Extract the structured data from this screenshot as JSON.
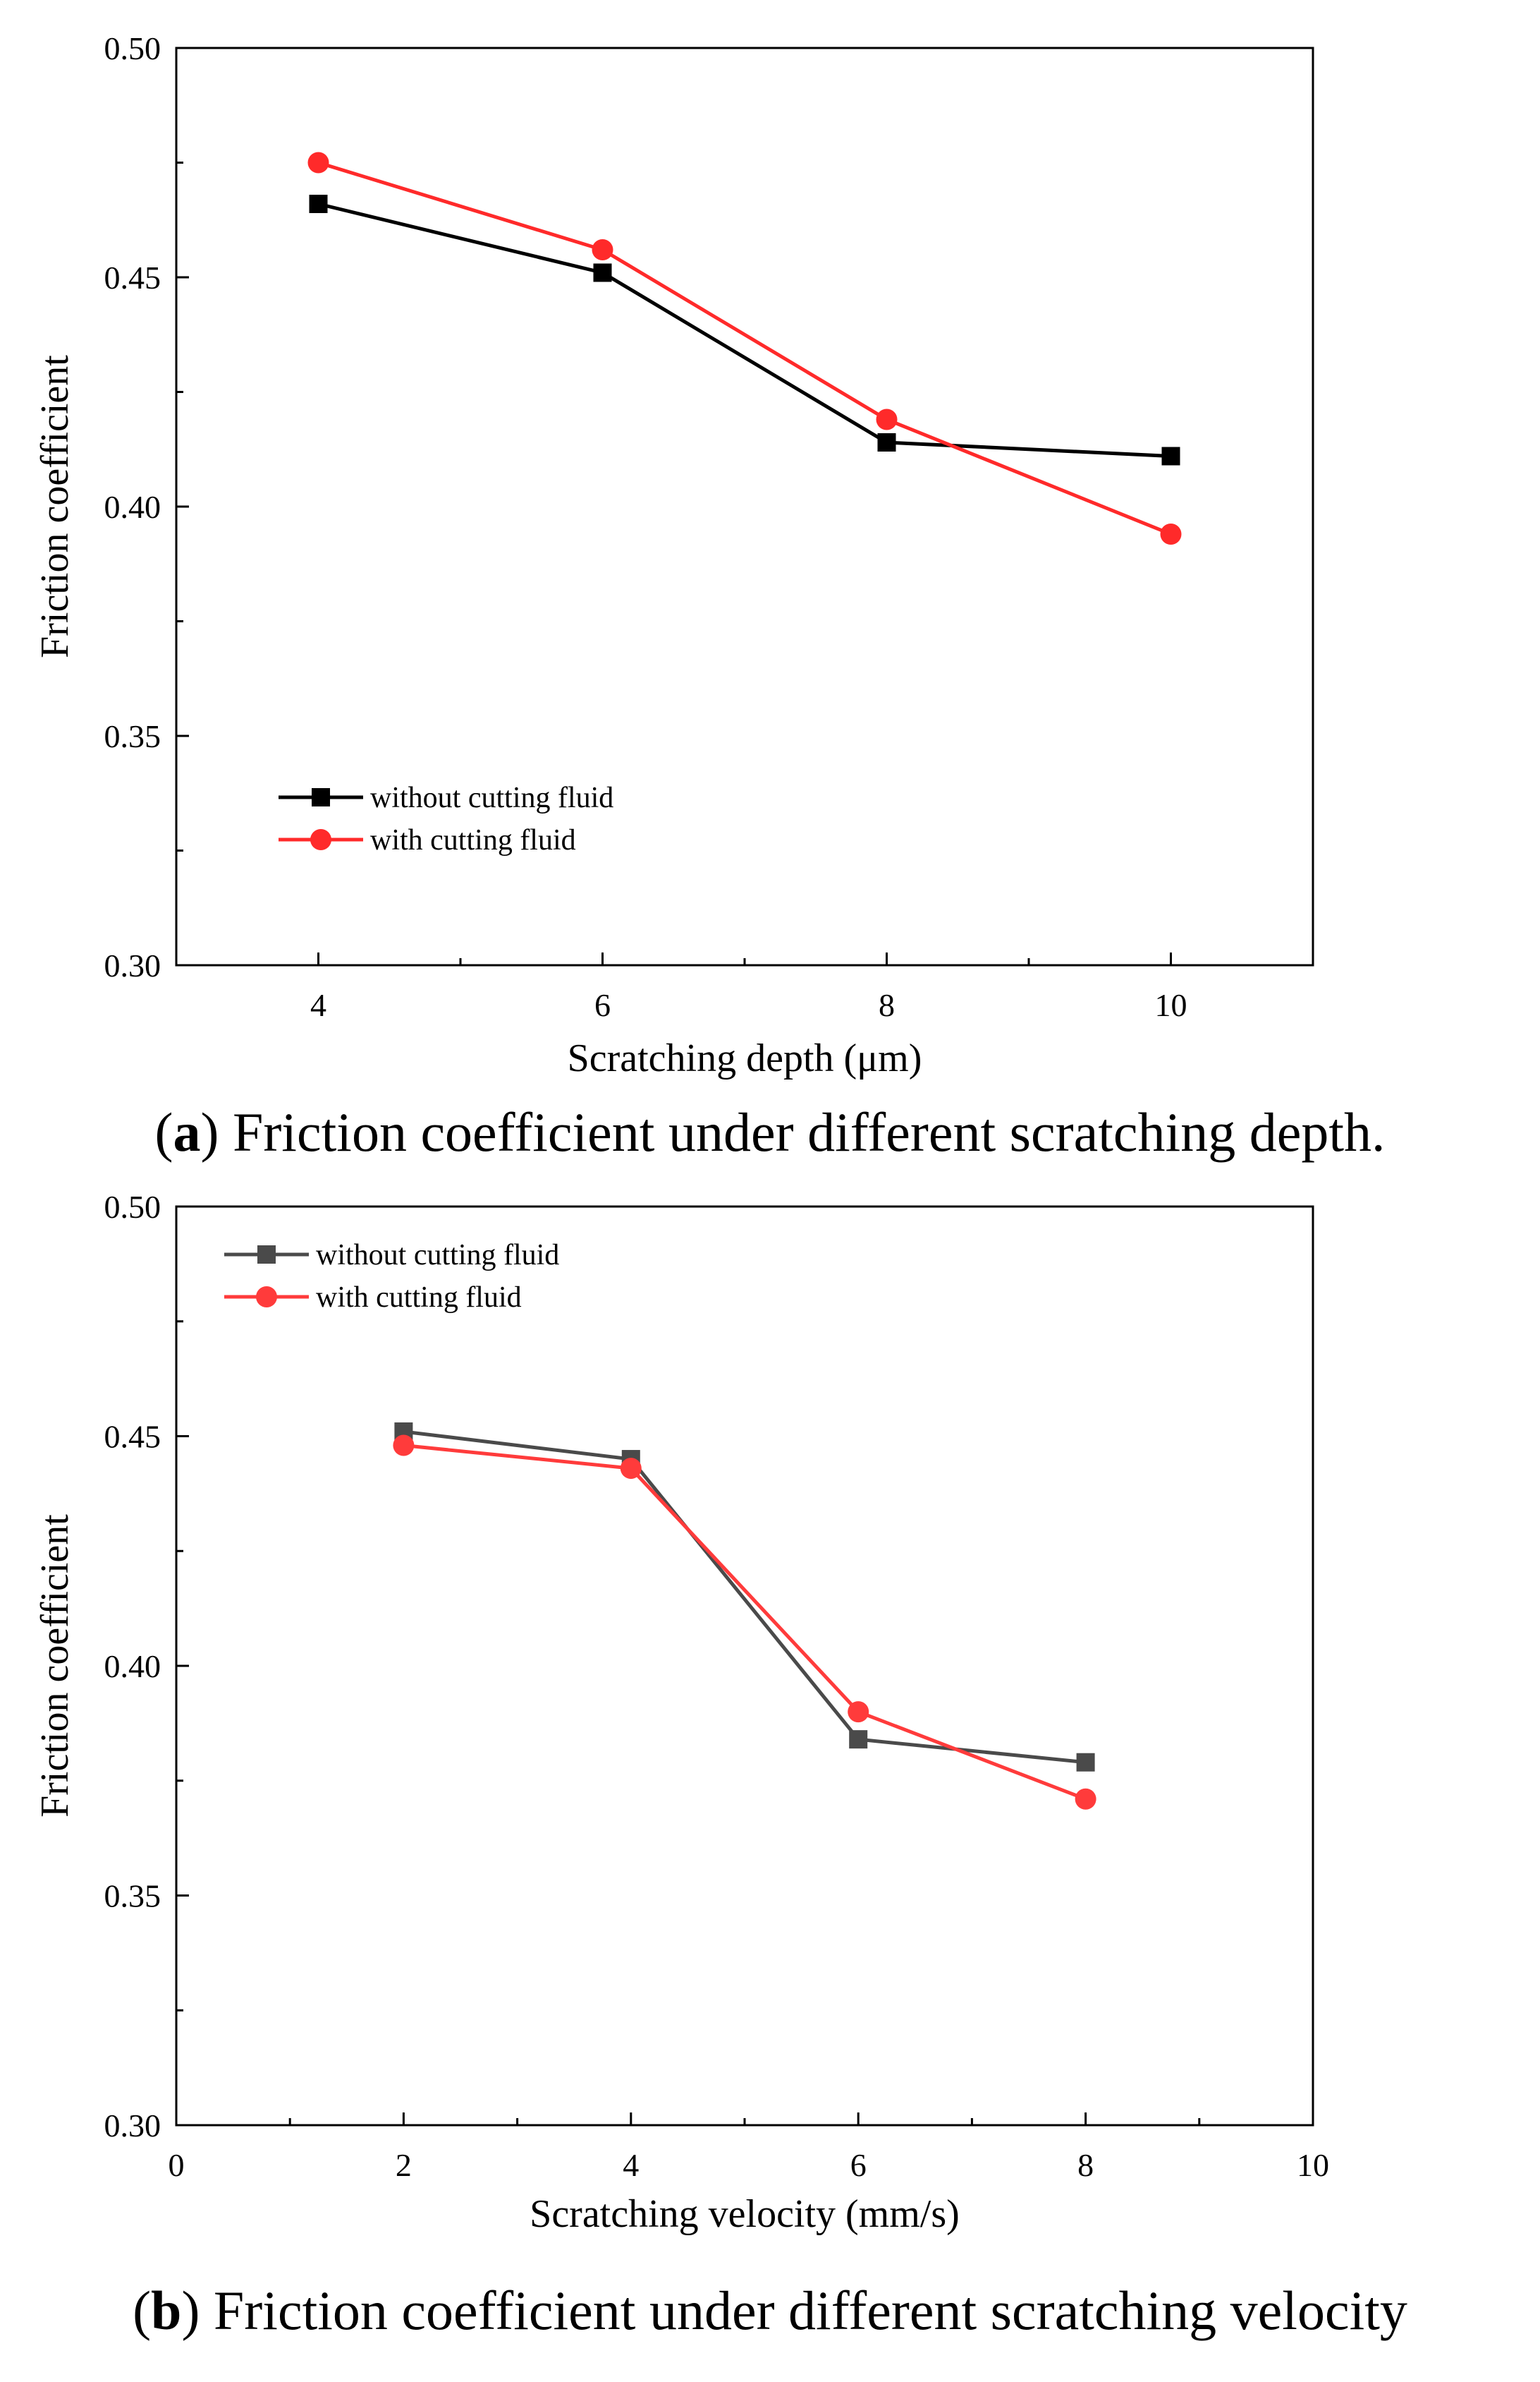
{
  "chart_data": [
    {
      "type": "line",
      "title": "",
      "caption": {
        "label": "a",
        "text": "Friction coefficient under different scratching depth."
      },
      "xlabel": "Scratching depth (μm)",
      "ylabel": "Friction coefficient",
      "xlim": [
        3,
        11
      ],
      "ylim": [
        0.3,
        0.5
      ],
      "xticks": [
        4,
        6,
        8,
        10
      ],
      "xtick_labels": [
        "4",
        "6",
        "8",
        "10"
      ],
      "yticks": [
        0.3,
        0.35,
        0.4,
        0.45,
        0.5
      ],
      "ytick_labels": [
        "0.30",
        "0.35",
        "0.40",
        "0.45",
        "0.50"
      ],
      "x": [
        4,
        6,
        8,
        10
      ],
      "legend_position": "bottom-left",
      "series": [
        {
          "name": "without cutting fluid",
          "marker": "square",
          "color": "#000000",
          "values": [
            0.466,
            0.451,
            0.414,
            0.411
          ]
        },
        {
          "name": "with cutting fluid",
          "marker": "circle",
          "color": "#ff2a2a",
          "values": [
            0.475,
            0.456,
            0.419,
            0.394
          ]
        }
      ]
    },
    {
      "type": "line",
      "title": "",
      "caption": {
        "label": "b",
        "text": "Friction coefficient under different scratching velocity"
      },
      "xlabel": "Scratching velocity (mm/s)",
      "ylabel": "Friction coefficient",
      "xlim": [
        0,
        10
      ],
      "ylim": [
        0.3,
        0.5
      ],
      "xticks": [
        0,
        2,
        4,
        6,
        8,
        10
      ],
      "xtick_labels": [
        "0",
        "2",
        "4",
        "6",
        "8",
        "10"
      ],
      "yticks": [
        0.3,
        0.35,
        0.4,
        0.45,
        0.5
      ],
      "ytick_labels": [
        "0.30",
        "0.35",
        "0.40",
        "0.45",
        "0.50"
      ],
      "x": [
        2,
        4,
        6,
        8
      ],
      "legend_position": "top-left",
      "series": [
        {
          "name": "without cutting fluid",
          "marker": "square",
          "color": "#4a4a4a",
          "values": [
            0.451,
            0.445,
            0.384,
            0.379
          ]
        },
        {
          "name": "with cutting fluid",
          "marker": "circle",
          "color": "#ff3b3b",
          "values": [
            0.448,
            0.443,
            0.39,
            0.371
          ]
        }
      ]
    }
  ]
}
